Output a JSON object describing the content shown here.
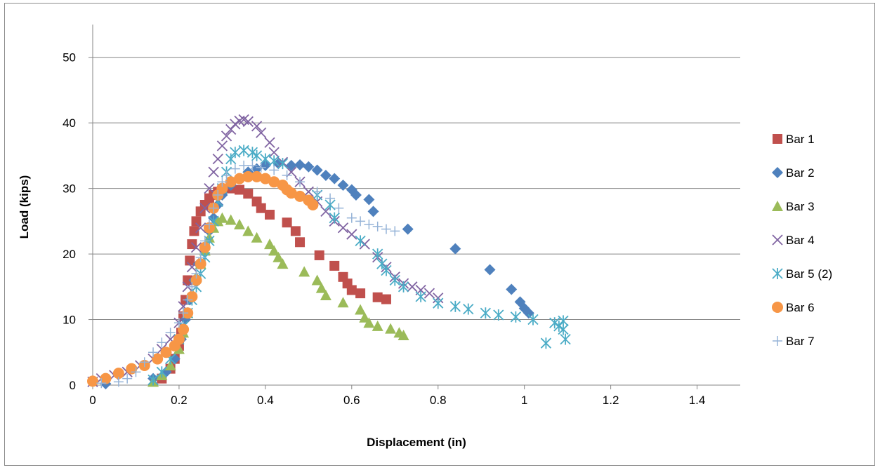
{
  "chart_data": {
    "type": "scatter",
    "title": "",
    "xlabel": "Displacement (in)",
    "ylabel": "Load (kips)",
    "xlim": [
      0,
      1.5
    ],
    "ylim": [
      0,
      55
    ],
    "xticks": [
      "0",
      "0.2",
      "0.4",
      "0.6",
      "0.8",
      "1",
      "1.2",
      "1.4"
    ],
    "yticks": [
      "0",
      "10",
      "20",
      "30",
      "40",
      "50"
    ],
    "grid": "horizontal major gridlines",
    "legend_position": "right",
    "series": [
      {
        "name": "Bar 1",
        "marker": "square",
        "color": "#c0504d",
        "points": [
          [
            0.16,
            1.0
          ],
          [
            0.18,
            2.5
          ],
          [
            0.19,
            4.0
          ],
          [
            0.2,
            6.0
          ],
          [
            0.205,
            8.0
          ],
          [
            0.21,
            10.5
          ],
          [
            0.215,
            13.0
          ],
          [
            0.22,
            16.0
          ],
          [
            0.225,
            19.0
          ],
          [
            0.23,
            21.5
          ],
          [
            0.235,
            23.5
          ],
          [
            0.24,
            25.0
          ],
          [
            0.25,
            26.5
          ],
          [
            0.26,
            27.5
          ],
          [
            0.27,
            28.5
          ],
          [
            0.28,
            29.0
          ],
          [
            0.29,
            29.5
          ],
          [
            0.3,
            29.8
          ],
          [
            0.32,
            30.0
          ],
          [
            0.34,
            29.8
          ],
          [
            0.36,
            29.2
          ],
          [
            0.38,
            28.0
          ],
          [
            0.39,
            27.0
          ],
          [
            0.41,
            26.0
          ],
          [
            0.45,
            24.8
          ],
          [
            0.47,
            23.5
          ],
          [
            0.48,
            21.8
          ],
          [
            0.525,
            19.8
          ],
          [
            0.56,
            18.2
          ],
          [
            0.58,
            16.5
          ],
          [
            0.59,
            15.5
          ],
          [
            0.6,
            14.5
          ],
          [
            0.62,
            14.0
          ],
          [
            0.66,
            13.4
          ],
          [
            0.68,
            13.1
          ]
        ]
      },
      {
        "name": "Bar 2",
        "marker": "diamond",
        "color": "#4f81bd",
        "points": [
          [
            0.03,
            0.2
          ],
          [
            0.14,
            1.0
          ],
          [
            0.17,
            2.0
          ],
          [
            0.19,
            4.0
          ],
          [
            0.205,
            7.0
          ],
          [
            0.215,
            10.0
          ],
          [
            0.225,
            13.0
          ],
          [
            0.235,
            16.0
          ],
          [
            0.245,
            18.5
          ],
          [
            0.26,
            21.0
          ],
          [
            0.27,
            23.5
          ],
          [
            0.28,
            25.5
          ],
          [
            0.29,
            27.5
          ],
          [
            0.3,
            29.0
          ],
          [
            0.32,
            30.5
          ],
          [
            0.34,
            31.5
          ],
          [
            0.36,
            32.5
          ],
          [
            0.38,
            33.0
          ],
          [
            0.4,
            33.5
          ],
          [
            0.43,
            33.8
          ],
          [
            0.46,
            33.5
          ],
          [
            0.48,
            33.6
          ],
          [
            0.5,
            33.3
          ],
          [
            0.52,
            32.8
          ],
          [
            0.54,
            32.0
          ],
          [
            0.56,
            31.5
          ],
          [
            0.58,
            30.5
          ],
          [
            0.6,
            29.8
          ],
          [
            0.61,
            29.0
          ],
          [
            0.64,
            28.3
          ],
          [
            0.65,
            26.5
          ],
          [
            0.73,
            23.8
          ],
          [
            0.84,
            20.8
          ],
          [
            0.92,
            17.6
          ],
          [
            0.97,
            14.6
          ],
          [
            0.99,
            12.7
          ],
          [
            1.0,
            11.7
          ],
          [
            1.01,
            11.0
          ]
        ]
      },
      {
        "name": "Bar 3",
        "marker": "triangle",
        "color": "#9bbb59",
        "points": [
          [
            0.14,
            0.5
          ],
          [
            0.16,
            1.5
          ],
          [
            0.18,
            3.0
          ],
          [
            0.2,
            5.5
          ],
          [
            0.21,
            8.0
          ],
          [
            0.22,
            11.0
          ],
          [
            0.23,
            14.0
          ],
          [
            0.24,
            16.5
          ],
          [
            0.25,
            18.5
          ],
          [
            0.26,
            20.5
          ],
          [
            0.27,
            22.5
          ],
          [
            0.28,
            24.0
          ],
          [
            0.29,
            25.0
          ],
          [
            0.3,
            25.5
          ],
          [
            0.32,
            25.2
          ],
          [
            0.34,
            24.5
          ],
          [
            0.36,
            23.5
          ],
          [
            0.38,
            22.5
          ],
          [
            0.41,
            21.5
          ],
          [
            0.42,
            20.5
          ],
          [
            0.43,
            19.5
          ],
          [
            0.44,
            18.5
          ],
          [
            0.49,
            17.3
          ],
          [
            0.52,
            16.0
          ],
          [
            0.53,
            14.8
          ],
          [
            0.54,
            13.7
          ],
          [
            0.58,
            12.6
          ],
          [
            0.62,
            11.5
          ],
          [
            0.63,
            10.3
          ],
          [
            0.64,
            9.5
          ],
          [
            0.66,
            9.0
          ],
          [
            0.69,
            8.6
          ],
          [
            0.71,
            8.0
          ],
          [
            0.72,
            7.6
          ]
        ]
      },
      {
        "name": "Bar 4",
        "marker": "x",
        "color": "#8064a2",
        "points": [
          [
            0.0,
            0.5
          ],
          [
            0.02,
            1.0
          ],
          [
            0.05,
            1.5
          ],
          [
            0.08,
            2.0
          ],
          [
            0.11,
            3.0
          ],
          [
            0.14,
            4.0
          ],
          [
            0.16,
            5.5
          ],
          [
            0.18,
            7.0
          ],
          [
            0.2,
            9.5
          ],
          [
            0.21,
            12.0
          ],
          [
            0.22,
            15.0
          ],
          [
            0.23,
            18.0
          ],
          [
            0.24,
            21.0
          ],
          [
            0.25,
            24.0
          ],
          [
            0.26,
            27.0
          ],
          [
            0.27,
            30.0
          ],
          [
            0.28,
            32.5
          ],
          [
            0.29,
            34.5
          ],
          [
            0.3,
            36.5
          ],
          [
            0.31,
            38.0
          ],
          [
            0.32,
            39.0
          ],
          [
            0.33,
            39.8
          ],
          [
            0.34,
            40.3
          ],
          [
            0.35,
            40.5
          ],
          [
            0.36,
            40.2
          ],
          [
            0.38,
            39.5
          ],
          [
            0.39,
            38.5
          ],
          [
            0.41,
            37.0
          ],
          [
            0.42,
            35.5
          ],
          [
            0.44,
            34.0
          ],
          [
            0.46,
            32.5
          ],
          [
            0.48,
            31.0
          ],
          [
            0.5,
            29.5
          ],
          [
            0.52,
            28.0
          ],
          [
            0.54,
            26.5
          ],
          [
            0.56,
            25.0
          ],
          [
            0.58,
            24.0
          ],
          [
            0.6,
            23.0
          ],
          [
            0.63,
            21.5
          ],
          [
            0.66,
            19.5
          ],
          [
            0.68,
            18.0
          ],
          [
            0.7,
            16.5
          ],
          [
            0.72,
            15.5
          ],
          [
            0.74,
            15.0
          ],
          [
            0.76,
            14.5
          ],
          [
            0.78,
            14.0
          ],
          [
            0.8,
            13.3
          ]
        ]
      },
      {
        "name": "Bar 5 (2)",
        "marker": "asterisk",
        "color": "#4bacc6",
        "points": [
          [
            0.14,
            0.8
          ],
          [
            0.16,
            2.0
          ],
          [
            0.18,
            4.0
          ],
          [
            0.2,
            7.0
          ],
          [
            0.21,
            9.0
          ],
          [
            0.22,
            11.0
          ],
          [
            0.23,
            13.0
          ],
          [
            0.24,
            15.0
          ],
          [
            0.25,
            17.0
          ],
          [
            0.26,
            19.5
          ],
          [
            0.27,
            22.0
          ],
          [
            0.28,
            25.0
          ],
          [
            0.29,
            28.0
          ],
          [
            0.3,
            30.0
          ],
          [
            0.31,
            32.5
          ],
          [
            0.32,
            34.5
          ],
          [
            0.33,
            35.5
          ],
          [
            0.35,
            35.8
          ],
          [
            0.37,
            35.5
          ],
          [
            0.38,
            35.0
          ],
          [
            0.4,
            34.5
          ],
          [
            0.42,
            34.2
          ],
          [
            0.44,
            33.8
          ],
          [
            0.52,
            29.0
          ],
          [
            0.55,
            27.5
          ],
          [
            0.56,
            25.5
          ],
          [
            0.62,
            22.0
          ],
          [
            0.66,
            20.0
          ],
          [
            0.67,
            18.5
          ],
          [
            0.68,
            17.5
          ],
          [
            0.7,
            16.0
          ],
          [
            0.72,
            15.0
          ],
          [
            0.76,
            13.5
          ],
          [
            0.8,
            12.5
          ],
          [
            0.84,
            12.0
          ],
          [
            0.87,
            11.6
          ],
          [
            0.91,
            11.0
          ],
          [
            0.94,
            10.7
          ],
          [
            0.98,
            10.4
          ],
          [
            1.02,
            10.0
          ],
          [
            1.05,
            6.4
          ],
          [
            1.07,
            9.5
          ],
          [
            1.08,
            9.0
          ],
          [
            1.09,
            8.5
          ],
          [
            1.09,
            9.8
          ],
          [
            1.095,
            7.0
          ]
        ]
      },
      {
        "name": "Bar 6",
        "marker": "circle",
        "color": "#f79646",
        "points": [
          [
            0.0,
            0.6
          ],
          [
            0.03,
            1.0
          ],
          [
            0.06,
            1.8
          ],
          [
            0.09,
            2.5
          ],
          [
            0.12,
            3.0
          ],
          [
            0.15,
            4.0
          ],
          [
            0.17,
            5.0
          ],
          [
            0.19,
            6.0
          ],
          [
            0.2,
            7.0
          ],
          [
            0.21,
            8.5
          ],
          [
            0.22,
            11.0
          ],
          [
            0.23,
            13.5
          ],
          [
            0.24,
            16.0
          ],
          [
            0.25,
            18.5
          ],
          [
            0.26,
            21.0
          ],
          [
            0.27,
            24.0
          ],
          [
            0.28,
            27.0
          ],
          [
            0.29,
            29.0
          ],
          [
            0.3,
            30.0
          ],
          [
            0.32,
            31.0
          ],
          [
            0.34,
            31.5
          ],
          [
            0.36,
            31.8
          ],
          [
            0.38,
            31.8
          ],
          [
            0.4,
            31.5
          ],
          [
            0.42,
            31.0
          ],
          [
            0.44,
            30.5
          ],
          [
            0.45,
            29.8
          ],
          [
            0.46,
            29.3
          ],
          [
            0.48,
            28.8
          ],
          [
            0.5,
            28.2
          ],
          [
            0.51,
            27.5
          ]
        ]
      },
      {
        "name": "Bar 7",
        "marker": "plus",
        "color": "#95b3d7",
        "points": [
          [
            0.02,
            0.3
          ],
          [
            0.06,
            0.5
          ],
          [
            0.08,
            1.0
          ],
          [
            0.1,
            2.0
          ],
          [
            0.12,
            3.5
          ],
          [
            0.14,
            5.0
          ],
          [
            0.16,
            6.5
          ],
          [
            0.18,
            8.0
          ],
          [
            0.2,
            9.5
          ],
          [
            0.21,
            11.0
          ],
          [
            0.22,
            13.0
          ],
          [
            0.23,
            15.0
          ],
          [
            0.24,
            17.0
          ],
          [
            0.25,
            19.5
          ],
          [
            0.26,
            22.0
          ],
          [
            0.27,
            24.5
          ],
          [
            0.28,
            27.0
          ],
          [
            0.29,
            29.0
          ],
          [
            0.3,
            31.0
          ],
          [
            0.31,
            32.0
          ],
          [
            0.33,
            33.0
          ],
          [
            0.35,
            33.5
          ],
          [
            0.37,
            33.5
          ],
          [
            0.39,
            33.2
          ],
          [
            0.42,
            32.8
          ],
          [
            0.45,
            32.0
          ],
          [
            0.48,
            31.0
          ],
          [
            0.52,
            29.5
          ],
          [
            0.55,
            28.5
          ],
          [
            0.57,
            27.0
          ],
          [
            0.6,
            25.5
          ],
          [
            0.62,
            25.0
          ],
          [
            0.64,
            24.5
          ],
          [
            0.66,
            24.2
          ],
          [
            0.68,
            23.8
          ],
          [
            0.7,
            23.5
          ]
        ]
      }
    ]
  }
}
